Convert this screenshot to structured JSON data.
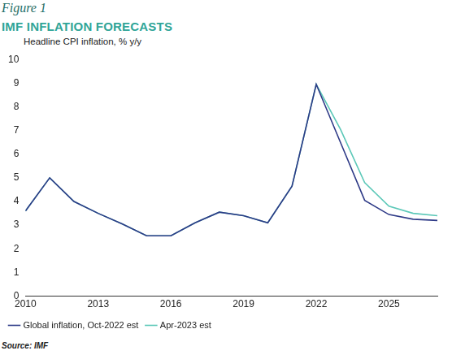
{
  "chart_data": {
    "type": "line",
    "figure_label": "Figure 1",
    "title": "IMF INFLATION FORECASTS",
    "y_label": "Headline CPI inflation, % y/y",
    "source": "Source: IMF",
    "x": [
      2010,
      2011,
      2012,
      2013,
      2014,
      2015,
      2016,
      2017,
      2018,
      2019,
      2020,
      2021,
      2022,
      2023,
      2024,
      2025,
      2026,
      2027
    ],
    "series": [
      {
        "name": "Global inflation, Oct-2022 est",
        "color": "#2e3a87",
        "line_style": "solid",
        "values": [
          3.6,
          5.0,
          4.0,
          3.5,
          3.05,
          2.55,
          2.55,
          3.1,
          3.55,
          3.4,
          3.1,
          4.65,
          8.95,
          6.5,
          4.05,
          3.45,
          3.25,
          3.2
        ]
      },
      {
        "name": "Apr-2023 est",
        "color": "#5cc8b8",
        "line_style": "solid",
        "values": [
          3.6,
          5.0,
          4.0,
          3.5,
          3.05,
          2.55,
          2.55,
          3.1,
          3.55,
          3.4,
          3.1,
          4.65,
          8.95,
          7.05,
          4.8,
          3.8,
          3.5,
          3.4
        ]
      }
    ],
    "xlim": [
      2010,
      2027
    ],
    "xticks": [
      2010,
      2013,
      2016,
      2019,
      2022,
      2025
    ],
    "ylim": [
      0,
      10
    ],
    "yticks": [
      0,
      1,
      2,
      3,
      4,
      5,
      6,
      7,
      8,
      9,
      10
    ],
    "grid": false,
    "legend": "bottom-left"
  }
}
